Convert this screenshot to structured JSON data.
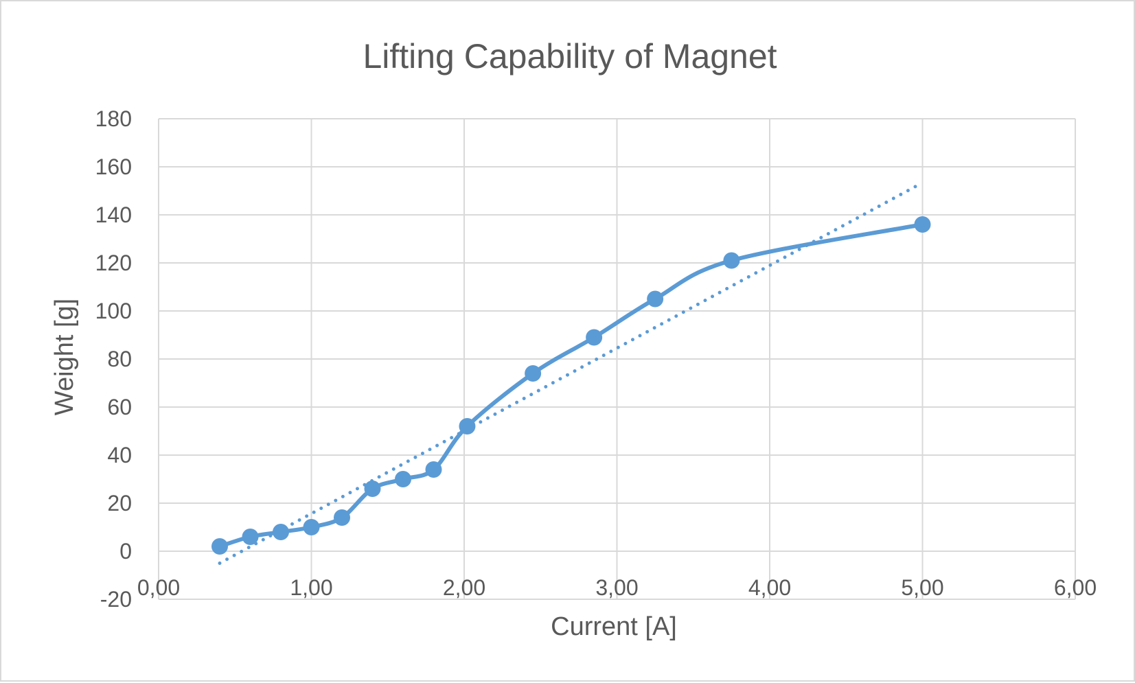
{
  "chart_data": {
    "type": "scatter",
    "title": "Lifting Capability of Magnet",
    "xlabel": "Current [A]",
    "ylabel": "Weight [g]",
    "xlim": [
      0,
      6
    ],
    "ylim": [
      -20,
      180
    ],
    "x_ticks": [
      "0,00",
      "1,00",
      "2,00",
      "3,00",
      "4,00",
      "5,00",
      "6,00"
    ],
    "y_ticks": [
      "-20",
      "0",
      "20",
      "40",
      "60",
      "80",
      "100",
      "120",
      "140",
      "160",
      "180"
    ],
    "grid": true,
    "legend": "none",
    "colors": {
      "series": "#5b9bd5",
      "grid": "#d9d9d9",
      "text": "#595959",
      "border": "#d9d9d9"
    },
    "series": [
      {
        "style": "smooth-line-with-markers",
        "x": [
          0.4,
          0.6,
          0.8,
          1.0,
          1.2,
          1.4,
          1.6,
          1.8,
          2.02,
          2.45,
          2.85,
          3.25,
          3.75,
          5.0
        ],
        "y": [
          2,
          6,
          8,
          10,
          14,
          26,
          30,
          34,
          52,
          74,
          89,
          105,
          121,
          136
        ]
      }
    ],
    "trendline": {
      "type": "linear",
      "style": "dotted",
      "x": [
        0.4,
        4.96
      ],
      "y": [
        -5,
        152
      ]
    }
  }
}
